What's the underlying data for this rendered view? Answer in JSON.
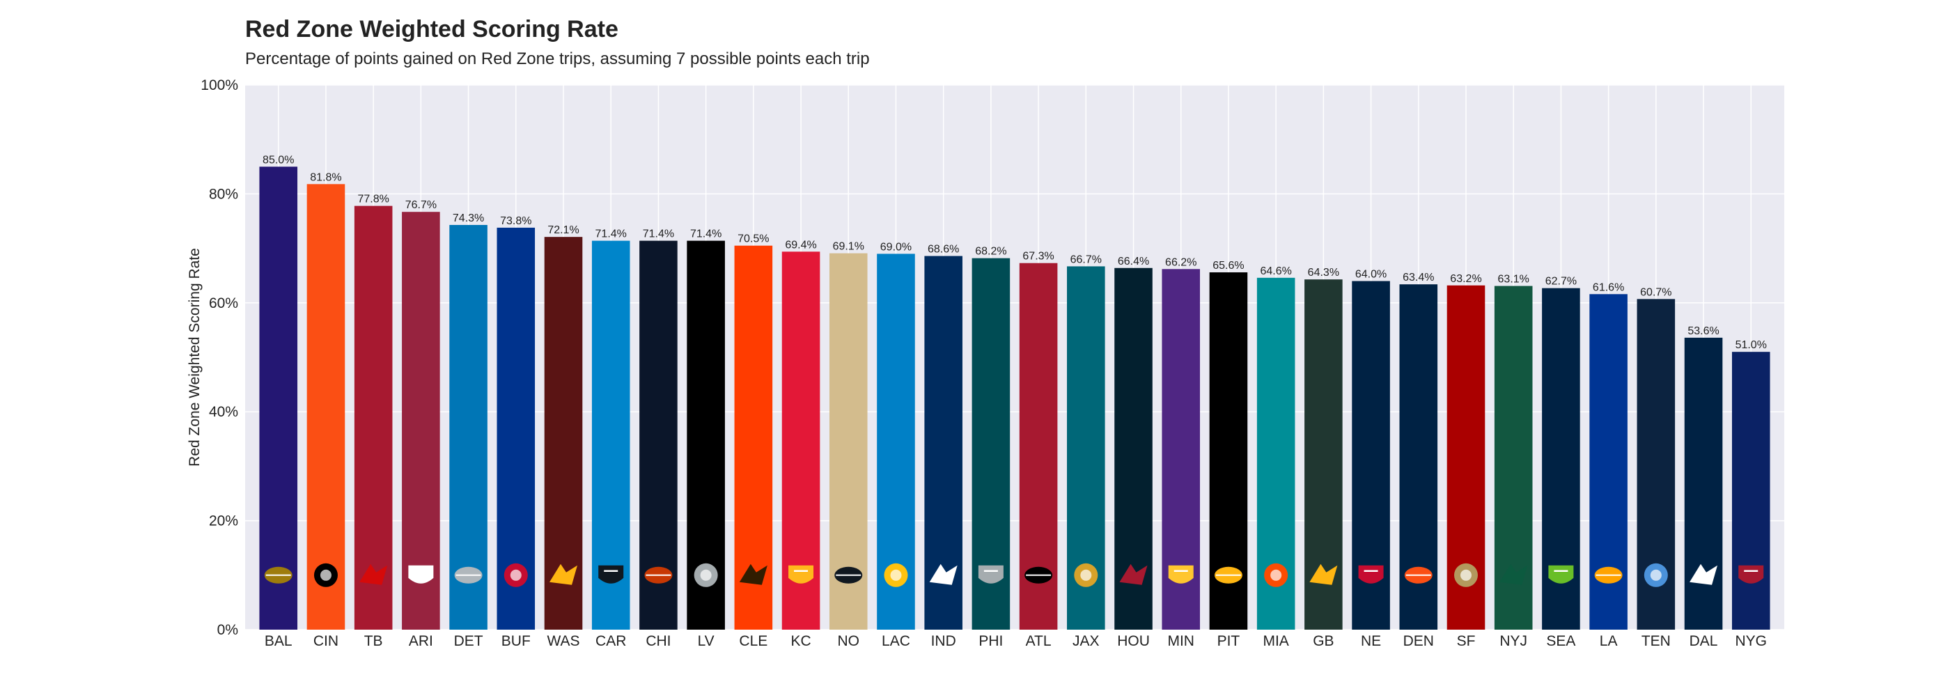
{
  "chart_data": {
    "type": "bar",
    "title": "Red Zone Weighted Scoring Rate",
    "subtitle": "Percentage of points gained on Red Zone trips, assuming 7 possible points each trip",
    "xlabel": "",
    "ylabel": "Red Zone Weighted Scoring Rate",
    "ylim": [
      0,
      100
    ],
    "yticks": [
      "0%",
      "20%",
      "40%",
      "60%",
      "80%",
      "100%"
    ],
    "grid": true,
    "legend": "none",
    "background_color": "#eaeaf2",
    "categories": [
      "BAL",
      "CIN",
      "TB",
      "ARI",
      "DET",
      "BUF",
      "WAS",
      "CAR",
      "CHI",
      "LV",
      "CLE",
      "KC",
      "NO",
      "LAC",
      "IND",
      "PHI",
      "ATL",
      "JAX",
      "HOU",
      "MIN",
      "PIT",
      "MIA",
      "GB",
      "NE",
      "DEN",
      "SF",
      "NYJ",
      "SEA",
      "LA",
      "TEN",
      "DAL",
      "NYG"
    ],
    "values": [
      85.0,
      81.8,
      77.8,
      76.7,
      74.3,
      73.8,
      72.1,
      71.4,
      71.4,
      71.4,
      70.5,
      69.4,
      69.1,
      69.0,
      68.6,
      68.2,
      67.3,
      66.7,
      66.4,
      66.2,
      65.6,
      64.6,
      64.3,
      64.0,
      63.4,
      63.2,
      63.1,
      62.7,
      61.6,
      60.7,
      53.6,
      51.0
    ],
    "data_labels": [
      "85.0%",
      "81.8%",
      "77.8%",
      "76.7%",
      "74.3%",
      "73.8%",
      "72.1%",
      "71.4%",
      "71.4%",
      "71.4%",
      "70.5%",
      "69.4%",
      "69.1%",
      "69.0%",
      "68.6%",
      "68.2%",
      "67.3%",
      "66.7%",
      "66.4%",
      "66.2%",
      "65.6%",
      "64.6%",
      "64.3%",
      "64.0%",
      "63.4%",
      "63.2%",
      "63.1%",
      "62.7%",
      "61.6%",
      "60.7%",
      "53.6%",
      "51.0%"
    ],
    "colors": [
      "#241773",
      "#fb4f14",
      "#a71930",
      "#97233f",
      "#0076b6",
      "#00338d",
      "#5a1414",
      "#0085ca",
      "#0b162a",
      "#000000",
      "#ff3c00",
      "#e31837",
      "#d3bc8d",
      "#0080c6",
      "#002c5f",
      "#004c54",
      "#a71930",
      "#006778",
      "#03202f",
      "#4f2683",
      "#000000",
      "#008e97",
      "#203731",
      "#002244",
      "#002244",
      "#aa0000",
      "#125740",
      "#002244",
      "#003594",
      "#0c2340",
      "#002244",
      "#0b2265"
    ],
    "logo_icons": [
      "ravens-logo-icon",
      "bengals-logo-icon",
      "buccaneers-logo-icon",
      "cardinals-logo-icon",
      "lions-logo-icon",
      "bills-logo-icon",
      "commanders-logo-icon",
      "panthers-logo-icon",
      "bears-logo-icon",
      "raiders-logo-icon",
      "browns-logo-icon",
      "chiefs-logo-icon",
      "saints-logo-icon",
      "chargers-logo-icon",
      "colts-logo-icon",
      "eagles-logo-icon",
      "falcons-logo-icon",
      "jaguars-logo-icon",
      "texans-logo-icon",
      "vikings-logo-icon",
      "steelers-logo-icon",
      "dolphins-logo-icon",
      "packers-logo-icon",
      "patriots-logo-icon",
      "broncos-logo-icon",
      "49ers-logo-icon",
      "jets-logo-icon",
      "seahawks-logo-icon",
      "rams-logo-icon",
      "titans-logo-icon",
      "cowboys-logo-icon",
      "giants-logo-icon"
    ],
    "logo_colors": [
      "#9e7c0c",
      "#000000",
      "#d50a0a",
      "#ffffff",
      "#b0b7bc",
      "#c60c30",
      "#ffb612",
      "#101820",
      "#c83803",
      "#a5acaf",
      "#311d00",
      "#ffb81c",
      "#101820",
      "#ffc20e",
      "#ffffff",
      "#a5acaf",
      "#000000",
      "#d7a22a",
      "#a71930",
      "#ffc62f",
      "#ffb612",
      "#fc4c02",
      "#ffb612",
      "#c60c30",
      "#fb4f14",
      "#b3995d",
      "#0c5a3f",
      "#69be28",
      "#ffa300",
      "#4b92db",
      "#ffffff",
      "#a71930"
    ]
  }
}
